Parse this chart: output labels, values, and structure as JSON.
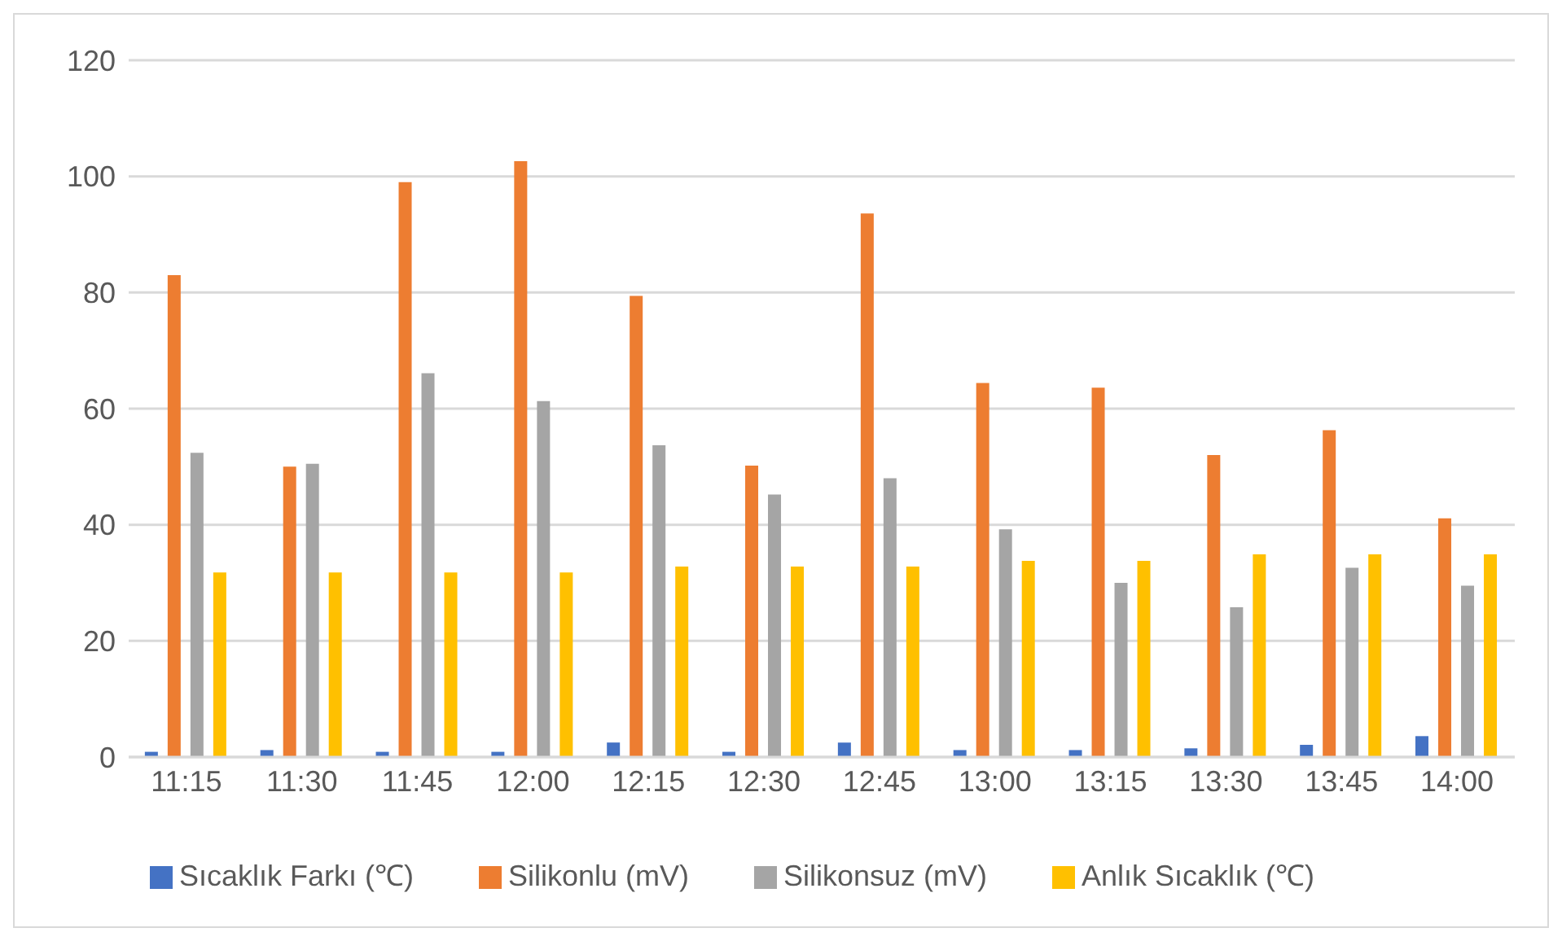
{
  "chart_data": {
    "type": "bar",
    "categories": [
      "11:15",
      "11:30",
      "11:45",
      "12:00",
      "12:15",
      "12:30",
      "12:45",
      "13:00",
      "13:15",
      "13:30",
      "13:45",
      "14:00"
    ],
    "series": [
      {
        "name": "Sıcaklık Farkı (℃)",
        "color": "#4472c4",
        "values": [
          0.9,
          1.2,
          0.9,
          0.9,
          2.5,
          0.9,
          2.5,
          1.2,
          1.2,
          1.5,
          2.1,
          3.6
        ]
      },
      {
        "name": "Silikonlu (mV)",
        "color": "#ed7d31",
        "values": [
          83,
          50,
          99,
          102.6,
          79.4,
          50.2,
          93.6,
          64.4,
          63.6,
          52,
          56.3,
          41.1
        ]
      },
      {
        "name": "Silikonsuz (mV)",
        "color": "#a5a5a5",
        "values": [
          52.4,
          50.5,
          66.1,
          61.3,
          53.7,
          45.2,
          48,
          39.2,
          30,
          25.8,
          32.6,
          29.5
        ]
      },
      {
        "name": "Anlık Sıcaklık (℃)",
        "color": "#ffc000",
        "values": [
          31.8,
          31.8,
          31.8,
          31.8,
          32.8,
          32.8,
          32.8,
          33.8,
          33.8,
          34.9,
          34.9,
          34.9
        ]
      }
    ],
    "ylim": [
      0,
      120
    ],
    "yticks": [
      0,
      20,
      40,
      60,
      80,
      100,
      120
    ],
    "grid": "y",
    "legend": "bottom"
  }
}
